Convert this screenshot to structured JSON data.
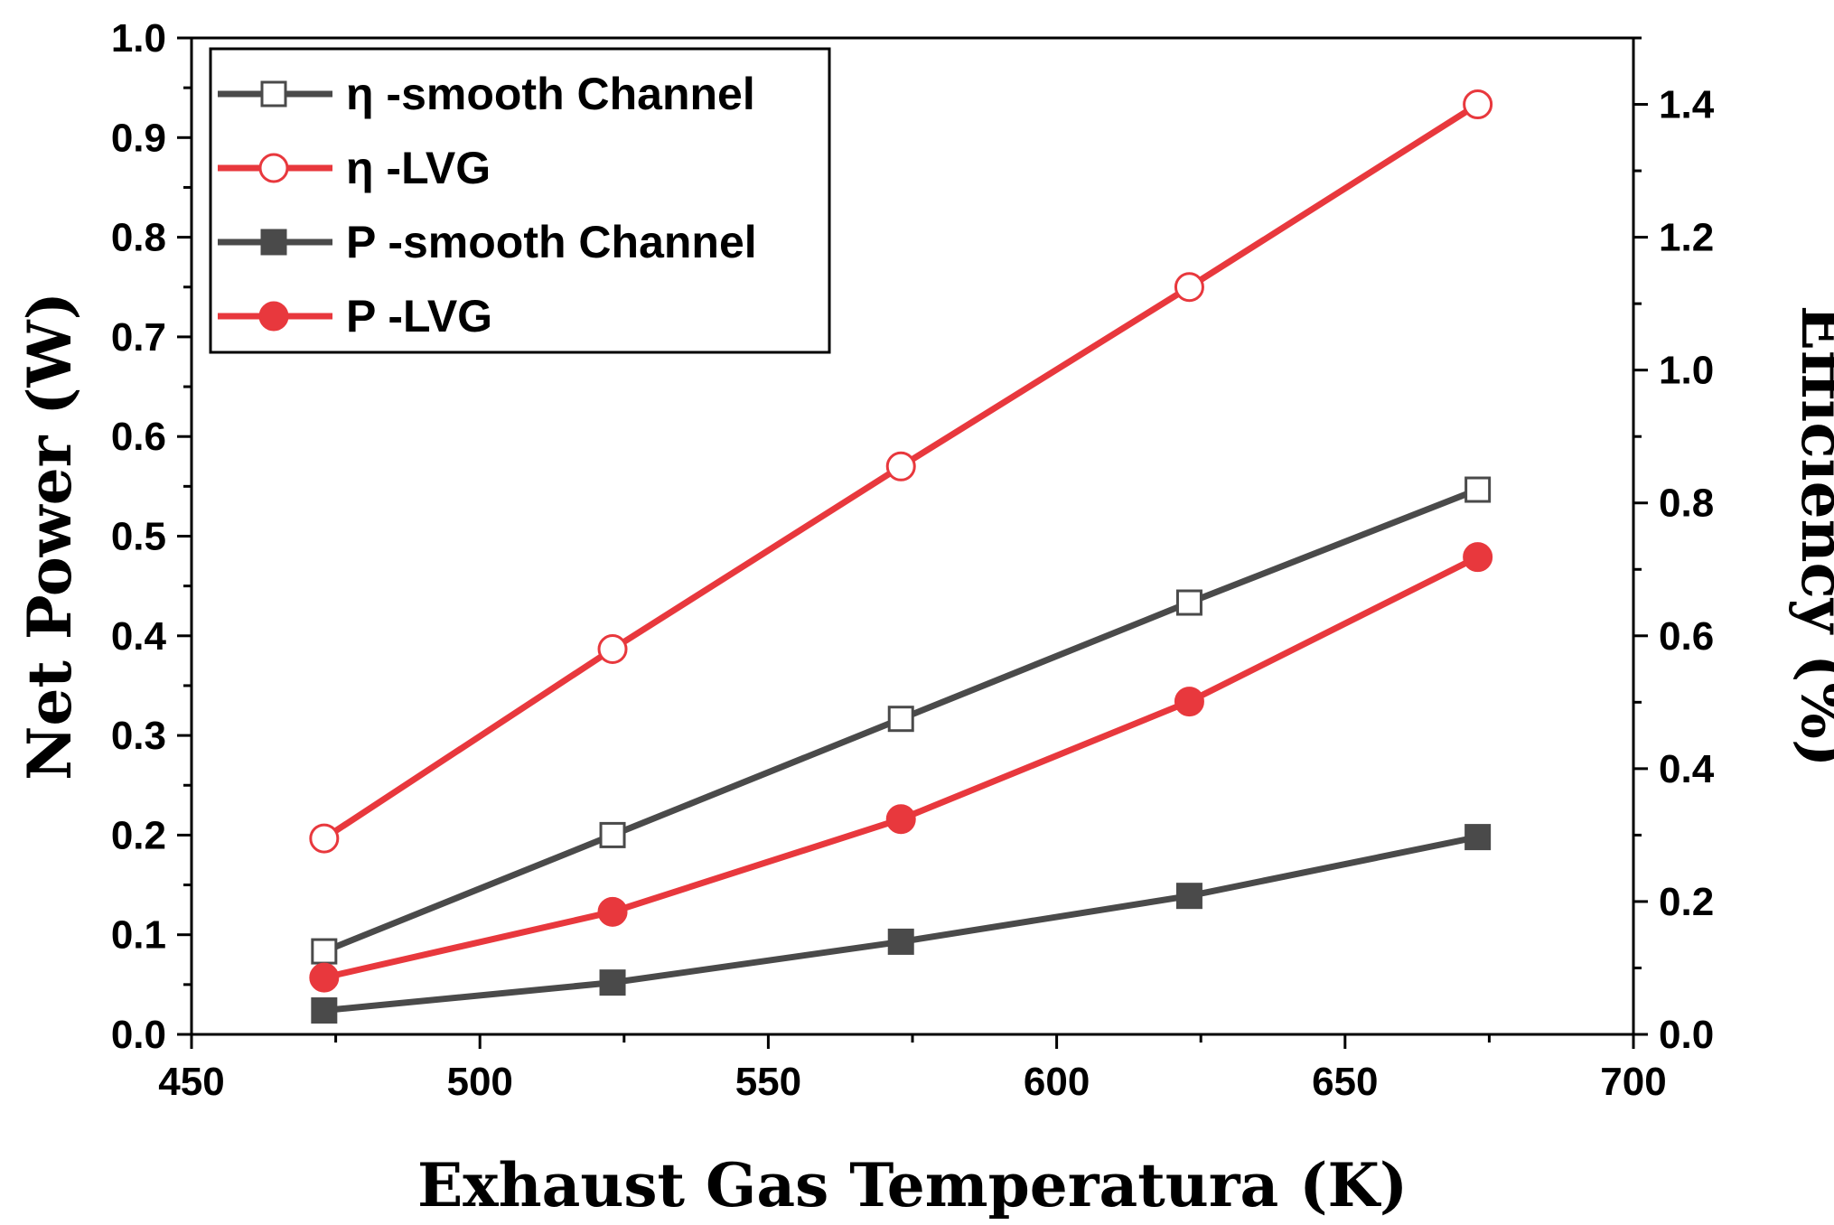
{
  "chart_data": {
    "type": "line",
    "xlabel": "Exhaust Gas Temperatura (K)",
    "ylabel": "Net Power (W)",
    "y2label": "Efficiency (%)",
    "xlim": [
      450,
      700
    ],
    "ylim": [
      0,
      1.0
    ],
    "y2lim": [
      0,
      1.5
    ],
    "x_ticks": [
      "450",
      "500",
      "550",
      "600",
      "650",
      "700"
    ],
    "y_ticks": [
      "0.0",
      "0.1",
      "0.2",
      "0.3",
      "0.4",
      "0.5",
      "0.6",
      "0.7",
      "0.8",
      "0.9",
      "1.0"
    ],
    "y2_ticks": [
      "0.0",
      "0.2",
      "0.4",
      "0.6",
      "0.8",
      "1.0",
      "1.2",
      "1.4"
    ],
    "x": [
      473,
      523,
      573,
      623,
      673
    ],
    "legend_position": "top-left",
    "series": [
      {
        "name": "η -smooth Channel",
        "axis": "right",
        "marker": "square-open",
        "color": "#4a4a4a",
        "values": [
          0.125,
          0.3,
          0.475,
          0.65,
          0.82
        ]
      },
      {
        "name": "η -LVG",
        "axis": "right",
        "marker": "circle-open",
        "color": "#e8383d",
        "values": [
          0.295,
          0.58,
          0.855,
          1.125,
          1.4
        ]
      },
      {
        "name": "P -smooth Channel",
        "axis": "left",
        "marker": "square-filled",
        "color": "#4a4a4a",
        "values": [
          0.024,
          0.052,
          0.093,
          0.139,
          0.198
        ]
      },
      {
        "name": "P -LVG",
        "axis": "left",
        "marker": "circle-filled",
        "color": "#e8383d",
        "values": [
          0.057,
          0.123,
          0.216,
          0.334,
          0.479
        ]
      }
    ]
  }
}
